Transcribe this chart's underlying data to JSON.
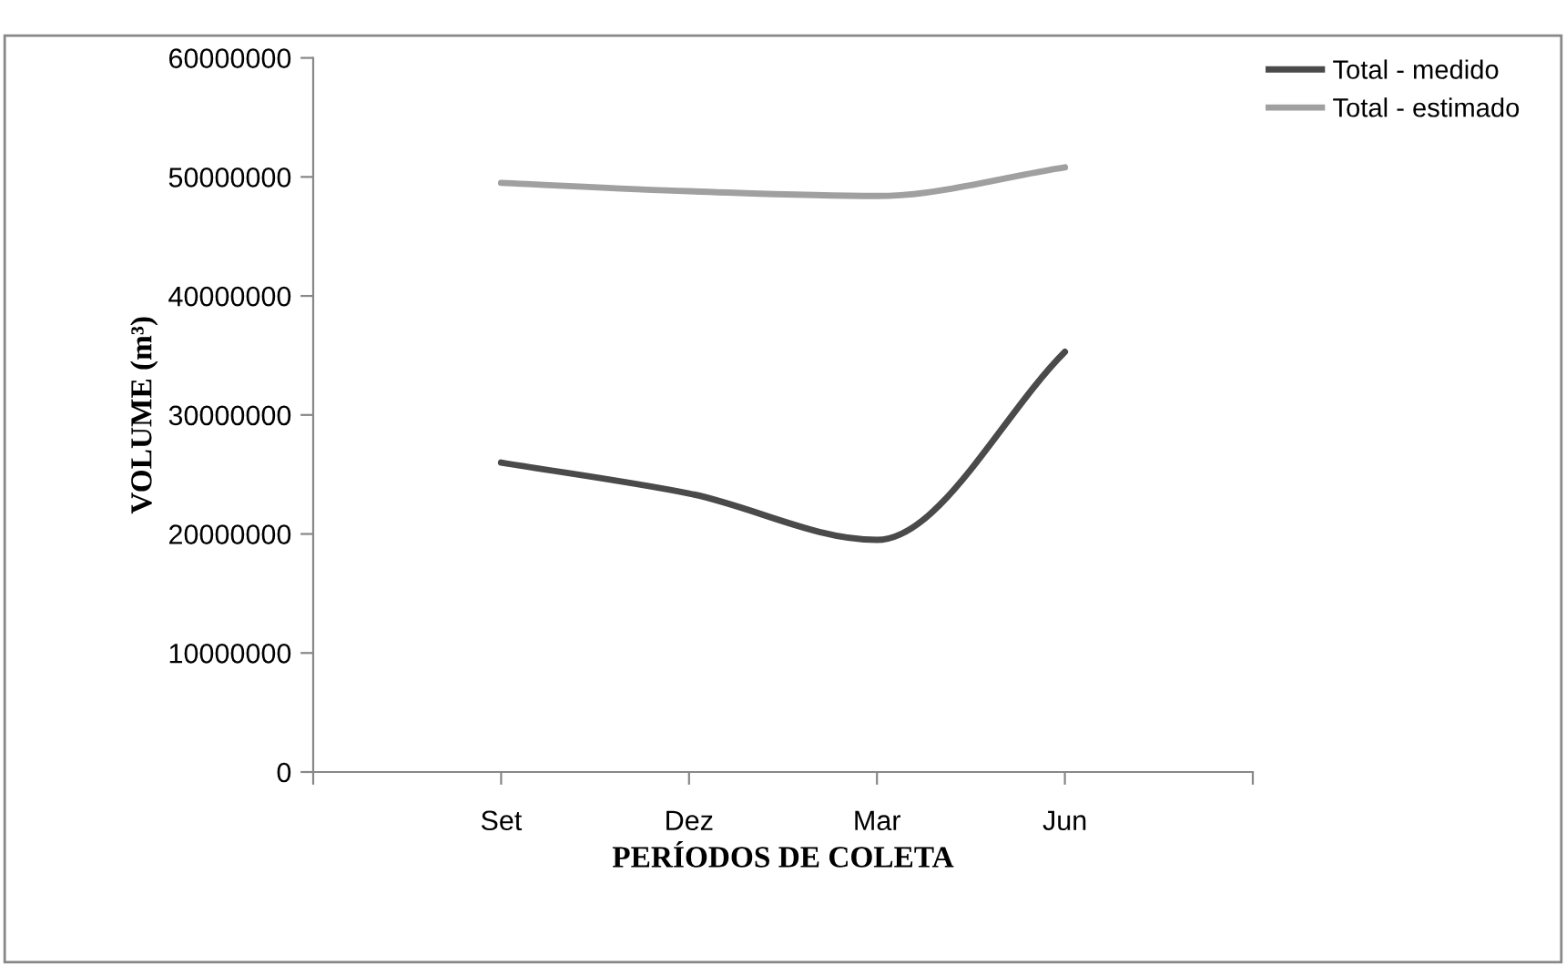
{
  "chart_data": {
    "type": "line",
    "xlabel": "PERÍODOS DE COLETA",
    "ylabel": "VOLUME (m³)",
    "categories": [
      null,
      "Set",
      "Dez",
      "Mar",
      "Jun",
      null
    ],
    "series": [
      {
        "name": "Total - medido",
        "color": "#4a4a4a",
        "values": [
          null,
          26000000,
          23400000,
          19500000,
          35300000,
          null
        ]
      },
      {
        "name": "Total - estimado",
        "color": "#a0a0a0",
        "values": [
          null,
          49500000,
          48800000,
          48400000,
          50800000,
          null
        ]
      }
    ],
    "ylim": [
      0,
      60000000
    ],
    "yticks": [
      0,
      10000000,
      20000000,
      30000000,
      40000000,
      50000000,
      60000000
    ],
    "grid": false,
    "legend": "top right",
    "marker": "none",
    "line_style": "solid"
  }
}
